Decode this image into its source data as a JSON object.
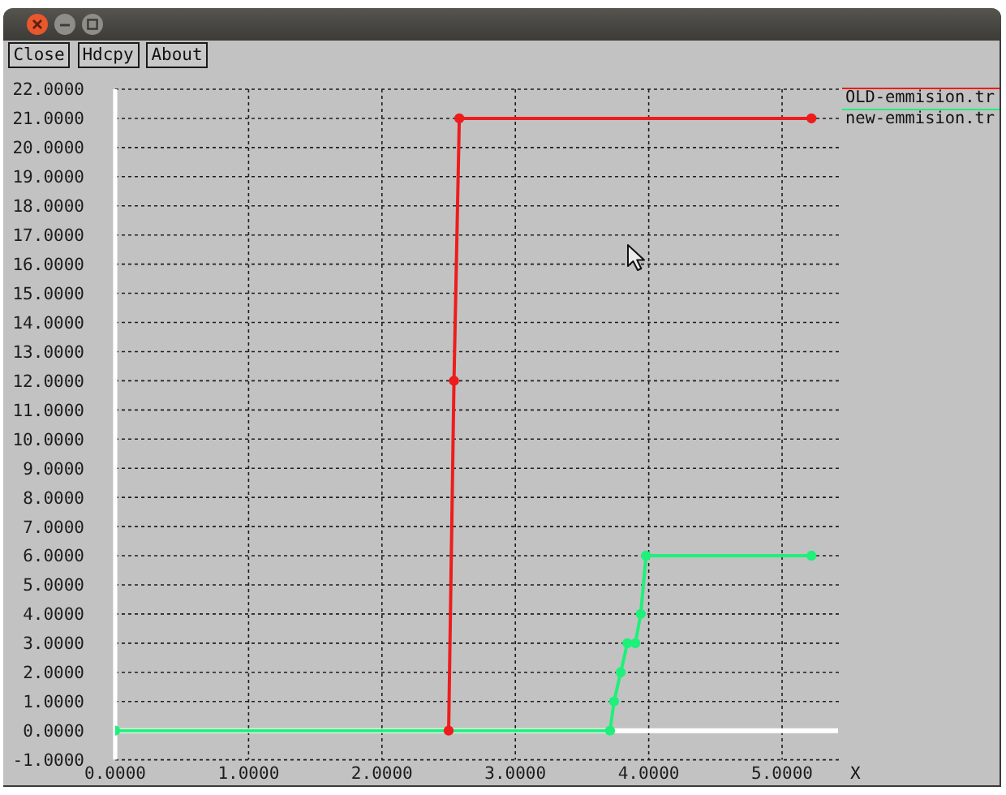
{
  "chart_data": {
    "type": "line",
    "xlabel": "X",
    "annotations": [
      "Close",
      "Hdcpy",
      "About"
    ],
    "series": [
      {
        "name": "OLD-emmision.tr",
        "color": "#ee1c1c",
        "x": [
          2.5,
          2.54,
          2.58,
          5.22
        ],
        "values": [
          0,
          12,
          21,
          21
        ]
      },
      {
        "name": "new-emmision.tr",
        "color": "#1ef07a",
        "x": [
          0,
          3.71,
          3.74,
          3.79,
          3.84,
          3.9,
          3.94,
          3.98,
          5.22
        ],
        "values": [
          0,
          0,
          1,
          2,
          3,
          3,
          4,
          6,
          6
        ]
      }
    ],
    "xlim": [
      0,
      5.45
    ],
    "ylim": [
      -1,
      22
    ],
    "xticks": [
      {
        "value": 0,
        "label": "0.0000"
      },
      {
        "value": 1,
        "label": "1.0000"
      },
      {
        "value": 2,
        "label": "2.0000"
      },
      {
        "value": 3,
        "label": "3.0000"
      },
      {
        "value": 4,
        "label": "4.0000"
      },
      {
        "value": 5,
        "label": "5.0000"
      }
    ],
    "yticks": [
      {
        "value": -1,
        "label": "-1.0000"
      },
      {
        "value": 0,
        "label": "0.0000"
      },
      {
        "value": 1,
        "label": "1.0000"
      },
      {
        "value": 2,
        "label": "2.0000"
      },
      {
        "value": 3,
        "label": "3.0000"
      },
      {
        "value": 4,
        "label": "4.0000"
      },
      {
        "value": 5,
        "label": "5.0000"
      },
      {
        "value": 6,
        "label": "6.0000"
      },
      {
        "value": 7,
        "label": "7.0000"
      },
      {
        "value": 8,
        "label": "8.0000"
      },
      {
        "value": 9,
        "label": "9.0000"
      },
      {
        "value": 10,
        "label": "10.0000"
      },
      {
        "value": 11,
        "label": "11.0000"
      },
      {
        "value": 12,
        "label": "12.0000"
      },
      {
        "value": 13,
        "label": "13.0000"
      },
      {
        "value": 14,
        "label": "14.0000"
      },
      {
        "value": 15,
        "label": "15.0000"
      },
      {
        "value": 16,
        "label": "16.0000"
      },
      {
        "value": 17,
        "label": "17.0000"
      },
      {
        "value": 18,
        "label": "18.0000"
      },
      {
        "value": 19,
        "label": "19.0000"
      },
      {
        "value": 20,
        "label": "20.0000"
      },
      {
        "value": 21,
        "label": "21.0000"
      },
      {
        "value": 22,
        "label": "22.0000"
      }
    ],
    "grid": true,
    "legend": "top right",
    "marker": "circle",
    "line_style": "solid",
    "ref_lines": [
      {
        "axis": "y",
        "value": 0,
        "color": "#ffffff"
      }
    ]
  }
}
